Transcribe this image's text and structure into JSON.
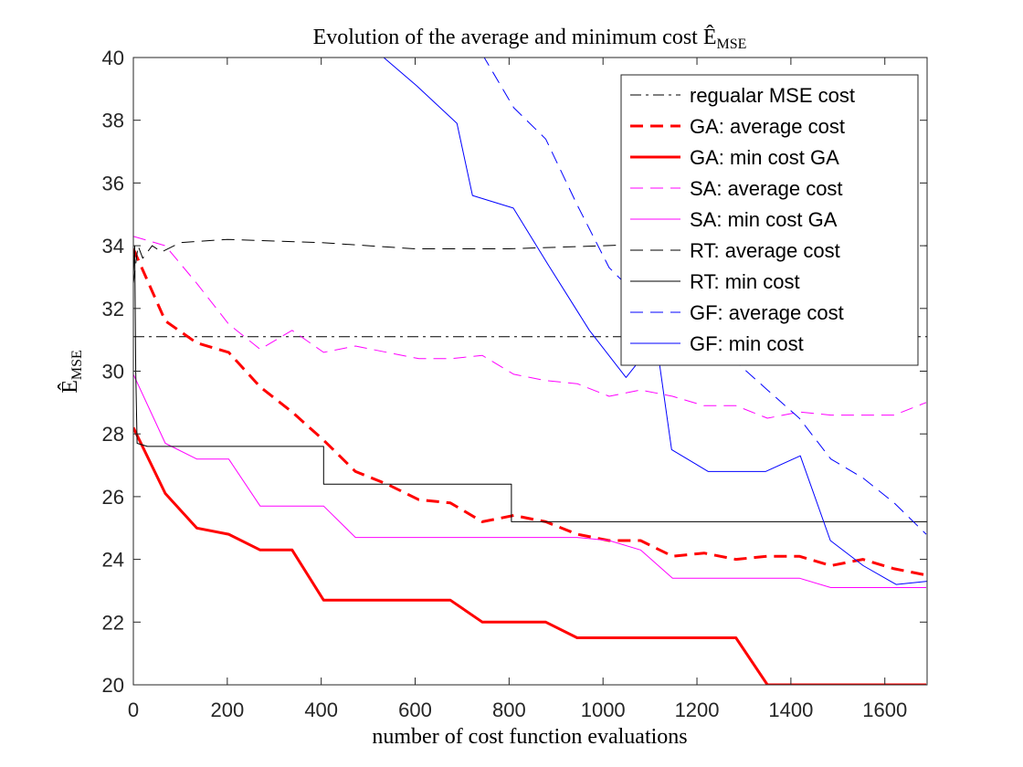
{
  "chart_data": {
    "type": "line",
    "title": "Evolution of the average and minimum cost Ê",
    "title_subscript": "MSE",
    "x_label": "number of cost function evaluations",
    "y_label": "Ê",
    "y_label_subscript": "MSE",
    "xlim": [
      0,
      1690
    ],
    "ylim": [
      20,
      40
    ],
    "xticks": [
      0,
      200,
      400,
      600,
      800,
      1000,
      1200,
      1400,
      1600
    ],
    "yticks": [
      20,
      22,
      24,
      26,
      28,
      30,
      32,
      34,
      36,
      38,
      40
    ],
    "legend": "upper right",
    "series": [
      {
        "name": "regualar MSE cost",
        "color": "#000000",
        "linestyle": "dashdot",
        "width": 1,
        "x": [
          0,
          1690
        ],
        "y": [
          31.1,
          31.1
        ]
      },
      {
        "name": "GA: average cost",
        "color": "#ff0000",
        "linestyle": "dashed",
        "width": 3,
        "x": [
          0,
          68,
          135,
          203,
          270,
          338,
          405,
          473,
          540,
          608,
          675,
          743,
          810,
          878,
          945,
          1013,
          1080,
          1148,
          1215,
          1283,
          1350,
          1418,
          1485,
          1553,
          1620,
          1688
        ],
        "y": [
          33.9,
          31.6,
          30.9,
          30.6,
          29.5,
          28.7,
          27.8,
          26.8,
          26.4,
          25.9,
          25.8,
          25.2,
          25.4,
          25.2,
          24.8,
          24.6,
          24.6,
          24.1,
          24.2,
          24.0,
          24.1,
          24.1,
          23.8,
          24.0,
          23.7,
          23.5
        ]
      },
      {
        "name": "GA: min cost GA",
        "color": "#ff0000",
        "linestyle": "solid",
        "width": 3,
        "x": [
          0,
          68,
          135,
          203,
          270,
          338,
          405,
          473,
          540,
          608,
          675,
          743,
          810,
          878,
          945,
          1013,
          1080,
          1148,
          1215,
          1283,
          1350,
          1418,
          1485,
          1553,
          1620,
          1688
        ],
        "y": [
          28.2,
          26.1,
          25.0,
          24.8,
          24.3,
          24.3,
          22.7,
          22.7,
          22.7,
          22.7,
          22.7,
          22.0,
          22.0,
          22.0,
          21.5,
          21.5,
          21.5,
          21.5,
          21.5,
          21.5,
          20.0,
          20.0,
          20.0,
          20.0,
          20.0,
          20.0
        ]
      },
      {
        "name": "SA: average cost",
        "color": "#ff00ff",
        "linestyle": "dashed",
        "width": 1,
        "x": [
          0,
          68,
          135,
          203,
          270,
          338,
          405,
          473,
          540,
          608,
          675,
          743,
          810,
          878,
          945,
          1013,
          1080,
          1148,
          1215,
          1283,
          1350,
          1418,
          1485,
          1553,
          1620,
          1688
        ],
        "y": [
          34.3,
          34.0,
          32.8,
          31.5,
          30.7,
          31.3,
          30.6,
          30.8,
          30.6,
          30.4,
          30.4,
          30.5,
          29.9,
          29.7,
          29.6,
          29.2,
          29.4,
          29.2,
          28.9,
          28.9,
          28.5,
          28.7,
          28.6,
          28.6,
          28.6,
          29.0
        ]
      },
      {
        "name": "SA: min cost GA",
        "color": "#ff00ff",
        "linestyle": "solid",
        "width": 1,
        "x": [
          0,
          68,
          135,
          203,
          270,
          338,
          405,
          473,
          540,
          608,
          675,
          743,
          810,
          878,
          945,
          1013,
          1080,
          1148,
          1215,
          1283,
          1350,
          1418,
          1485,
          1553,
          1620,
          1688
        ],
        "y": [
          29.9,
          27.7,
          27.2,
          27.2,
          25.7,
          25.7,
          25.7,
          24.7,
          24.7,
          24.7,
          24.7,
          24.7,
          24.7,
          24.7,
          24.7,
          24.6,
          24.3,
          23.4,
          23.4,
          23.4,
          23.4,
          23.4,
          23.1,
          23.1,
          23.1,
          23.1
        ]
      },
      {
        "name": "RT: average cost",
        "color": "#000000",
        "linestyle": "dashed",
        "width": 1,
        "x": [
          0,
          10,
          20,
          40,
          60,
          100,
          200,
          400,
          600,
          800,
          1000,
          1200,
          1400,
          1690
        ],
        "y": [
          32.8,
          34.0,
          33.6,
          34.0,
          33.8,
          34.1,
          34.2,
          34.1,
          33.9,
          33.9,
          34.0,
          34.1,
          34.05,
          34.0
        ]
      },
      {
        "name": "RT: min cost",
        "color": "#000000",
        "linestyle": "solid",
        "width": 1,
        "x": [
          0,
          3,
          5,
          8,
          30,
          405,
          405,
          805,
          805,
          1690
        ],
        "y": [
          33.0,
          34.0,
          30.0,
          27.7,
          27.6,
          27.6,
          26.4,
          26.4,
          25.2,
          25.2
        ]
      },
      {
        "name": "GF: average cost",
        "color": "#0000ff",
        "linestyle": "dashed",
        "width": 1,
        "x": [
          700,
          810,
          878,
          945,
          1013,
          1080,
          1148,
          1215,
          1283,
          1350,
          1418,
          1485,
          1553,
          1620,
          1688
        ],
        "y": [
          41.2,
          38.4,
          37.4,
          35.3,
          33.3,
          32.3,
          31.5,
          31.0,
          30.3,
          29.4,
          28.5,
          27.2,
          26.6,
          25.8,
          24.8
        ]
      },
      {
        "name": "GF: min cost",
        "color": "#0000ff",
        "linestyle": "solid",
        "width": 1,
        "x": [
          533,
          603,
          689,
          722,
          809,
          883,
          971,
          1049,
          1113,
          1146,
          1224,
          1346,
          1420,
          1484,
          1554,
          1624,
          1690
        ],
        "y": [
          40.0,
          39.1,
          37.9,
          35.6,
          35.2,
          33.4,
          31.3,
          29.8,
          31.0,
          27.5,
          26.8,
          26.8,
          27.3,
          24.6,
          23.8,
          23.2,
          23.3
        ]
      }
    ]
  }
}
